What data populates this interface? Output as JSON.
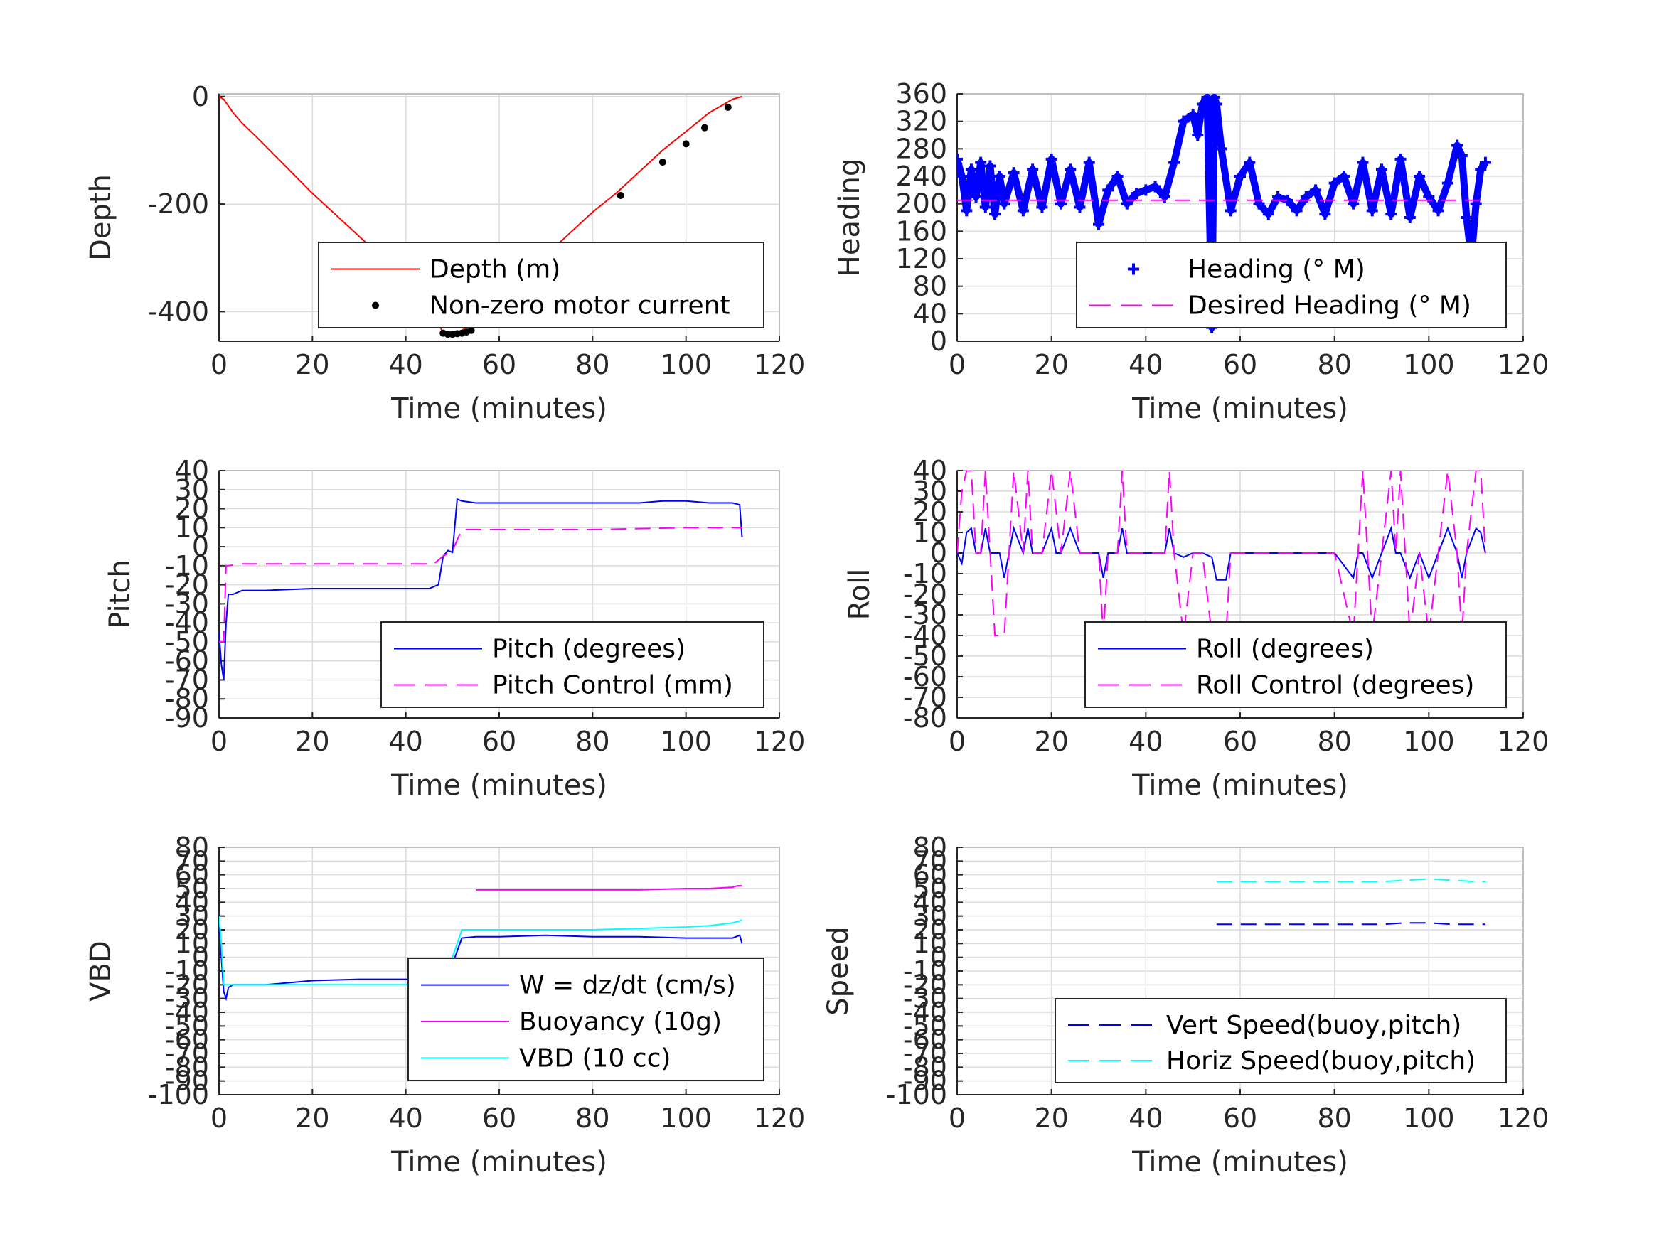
{
  "chart_data": [
    {
      "type": "line",
      "ylabel": "Depth",
      "xlabel": "Time (minutes)",
      "xlim": [
        0,
        120
      ],
      "ylim": [
        -455,
        5
      ],
      "xticks": [
        0,
        20,
        40,
        60,
        80,
        100,
        120
      ],
      "yticks": [
        -400,
        -200,
        0
      ],
      "ytick_labels": [
        "-400",
        "-200",
        "0"
      ],
      "grid": true,
      "legend_position": "bottom-right",
      "series": [
        {
          "name": "Depth (m)",
          "color": "#ff0000",
          "style": "solid",
          "x": [
            0,
            1,
            3,
            5,
            8,
            12,
            16,
            20,
            25,
            30,
            35,
            40,
            45,
            48,
            50,
            52,
            55,
            60,
            65,
            70,
            75,
            80,
            85,
            90,
            95,
            100,
            105,
            110,
            112
          ],
          "y": [
            0,
            -5,
            -30,
            -50,
            -75,
            -110,
            -145,
            -180,
            -220,
            -260,
            -300,
            -340,
            -385,
            -440,
            -440,
            -435,
            -415,
            -375,
            -335,
            -295,
            -255,
            -215,
            -180,
            -140,
            -100,
            -65,
            -30,
            -5,
            0
          ]
        },
        {
          "name": "Non-zero motor current",
          "color": "#000000",
          "style": "dots",
          "x": [
            48,
            49,
            50,
            51,
            52,
            53,
            54,
            86,
            95,
            100,
            104,
            109
          ],
          "y": [
            -440,
            -442,
            -442,
            -441,
            -440,
            -438,
            -435,
            -184,
            -122,
            -88,
            -58,
            -20
          ]
        }
      ]
    },
    {
      "type": "scatter",
      "ylabel": "Heading",
      "xlabel": "Time (minutes)",
      "xlim": [
        0,
        120
      ],
      "ylim": [
        0,
        360
      ],
      "xticks": [
        0,
        20,
        40,
        60,
        80,
        100,
        120
      ],
      "yticks": [
        0,
        40,
        80,
        120,
        160,
        200,
        240,
        280,
        320,
        360
      ],
      "ytick_labels": [
        "0",
        "40",
        "80",
        "120",
        "160",
        "200",
        "240",
        "280",
        "320",
        "360"
      ],
      "grid": true,
      "legend_position": "bottom-right",
      "series": [
        {
          "name": "Heading (° M)",
          "color": "#0000ff",
          "style": "plus",
          "x": [
            0,
            1,
            2,
            3,
            4,
            5,
            6,
            7,
            8,
            9,
            10,
            12,
            14,
            16,
            18,
            20,
            22,
            24,
            26,
            28,
            30,
            32,
            34,
            36,
            38,
            40,
            42,
            44,
            46,
            48,
            50,
            51,
            52,
            53,
            54,
            54.5,
            55,
            56,
            58,
            60,
            62,
            64,
            66,
            68,
            70,
            72,
            74,
            76,
            78,
            80,
            82,
            84,
            86,
            88,
            90,
            92,
            94,
            96,
            98,
            100,
            102,
            104,
            106,
            107,
            108,
            109,
            110,
            111,
            112
          ],
          "y": [
            265,
            240,
            190,
            250,
            210,
            260,
            195,
            255,
            185,
            240,
            200,
            245,
            190,
            250,
            195,
            265,
            200,
            250,
            195,
            260,
            170,
            220,
            240,
            200,
            215,
            220,
            225,
            210,
            260,
            320,
            330,
            300,
            345,
            355,
            20,
            355,
            345,
            280,
            190,
            240,
            260,
            200,
            185,
            210,
            205,
            190,
            210,
            220,
            185,
            230,
            240,
            200,
            260,
            190,
            250,
            185,
            265,
            180,
            240,
            210,
            190,
            230,
            285,
            270,
            180,
            120,
            200,
            250,
            260
          ]
        },
        {
          "name": "Desired Heading (° M)",
          "color": "#ff00ff",
          "style": "dashed",
          "x": [
            0,
            48,
            52,
            112
          ],
          "y": [
            205,
            205,
            205,
            205
          ]
        }
      ]
    },
    {
      "type": "line",
      "ylabel": "Pitch",
      "xlabel": "Time (minutes)",
      "xlim": [
        0,
        120
      ],
      "ylim": [
        -90,
        40
      ],
      "xticks": [
        0,
        20,
        40,
        60,
        80,
        100,
        120
      ],
      "yticks": [
        -90,
        -80,
        -70,
        -60,
        -50,
        -40,
        -30,
        -20,
        -10,
        0,
        10,
        20,
        30,
        40
      ],
      "ytick_labels": [
        "-90",
        "-80",
        "-70",
        "-60",
        "-50",
        "-40",
        "-30",
        "-20",
        "-10",
        "0",
        "10",
        "20",
        "30",
        "40"
      ],
      "grid": true,
      "legend_position": "bottom-right",
      "series": [
        {
          "name": "Pitch (degrees)",
          "color": "#0000ff",
          "style": "solid",
          "x": [
            0,
            0.5,
            1,
            1.5,
            2,
            3,
            5,
            10,
            20,
            30,
            40,
            45,
            47,
            48,
            49,
            50,
            51,
            52,
            55,
            60,
            70,
            80,
            90,
            95,
            100,
            105,
            110,
            111.5,
            112
          ],
          "y": [
            -45,
            -62,
            -70,
            -40,
            -25,
            -25,
            -23,
            -23,
            -22,
            -22,
            -22,
            -22,
            -20,
            -5,
            -2,
            -3,
            25,
            24,
            23,
            23,
            23,
            23,
            23,
            24,
            24,
            23,
            23,
            22,
            5
          ]
        },
        {
          "name": "Pitch Control (mm)",
          "color": "#ff00ff",
          "style": "dashed",
          "x": [
            0,
            1,
            1.5,
            2,
            5,
            20,
            40,
            46,
            48,
            50,
            52,
            60,
            80,
            100,
            112
          ],
          "y": [
            -50,
            -50,
            -10,
            -10,
            -9,
            -9,
            -9,
            -9,
            -5,
            -2,
            9,
            9,
            9,
            10,
            10
          ]
        }
      ]
    },
    {
      "type": "line",
      "ylabel": "Roll",
      "xlabel": "Time (minutes)",
      "xlim": [
        0,
        120
      ],
      "ylim": [
        -80,
        40
      ],
      "xticks": [
        0,
        20,
        40,
        60,
        80,
        100,
        120
      ],
      "yticks": [
        -80,
        -70,
        -60,
        -50,
        -40,
        -30,
        -20,
        -10,
        0,
        10,
        20,
        30,
        40
      ],
      "ytick_labels": [
        "-80",
        "-70",
        "-60",
        "-50",
        "-40",
        "-30",
        "-20",
        "-10",
        "0",
        "10",
        "20",
        "30",
        "40"
      ],
      "grid": true,
      "legend_position": "bottom-right",
      "series": [
        {
          "name": "Roll (degrees)",
          "color": "#0000ff",
          "style": "solid",
          "x": [
            0,
            1,
            2,
            3,
            4,
            5,
            6,
            7,
            9,
            10,
            11,
            12,
            14,
            15,
            16,
            18,
            20,
            21,
            22,
            24,
            26,
            28,
            30,
            31,
            32,
            34,
            35,
            36,
            38,
            40,
            42,
            44,
            45,
            46,
            48,
            50,
            52,
            54,
            55,
            57,
            58,
            60,
            62,
            64,
            66,
            70,
            80,
            84,
            85,
            86,
            88,
            90,
            92,
            93,
            94,
            96,
            98,
            100,
            102,
            104,
            106,
            107,
            108,
            110,
            111,
            112
          ],
          "y": [
            0,
            -5,
            10,
            12,
            0,
            0,
            12,
            0,
            0,
            -12,
            0,
            12,
            0,
            12,
            0,
            0,
            12,
            0,
            0,
            12,
            0,
            0,
            0,
            -12,
            0,
            0,
            12,
            0,
            0,
            0,
            0,
            0,
            12,
            0,
            -2,
            0,
            0,
            -2,
            -13,
            -13,
            0,
            0,
            0,
            0,
            0,
            0,
            0,
            -12,
            0,
            0,
            -12,
            0,
            12,
            0,
            0,
            -12,
            0,
            -12,
            0,
            12,
            0,
            -12,
            0,
            12,
            10,
            0
          ]
        },
        {
          "name": "Roll Control (degrees)",
          "color": "#ff00ff",
          "style": "dashed",
          "x": [
            0,
            1,
            2,
            3,
            4,
            5,
            6,
            7,
            8,
            10,
            11,
            12,
            14,
            15,
            16,
            18,
            20,
            22,
            24,
            26,
            28,
            30,
            31,
            32,
            34,
            35,
            36,
            38,
            40,
            42,
            44,
            45,
            46,
            48,
            50,
            52,
            54,
            55,
            57,
            58,
            60,
            62,
            64,
            66,
            70,
            80,
            84,
            85,
            86,
            88,
            90,
            92,
            93,
            94,
            96,
            98,
            100,
            102,
            104,
            106,
            107,
            108,
            110,
            111,
            112
          ],
          "y": [
            0,
            30,
            40,
            40,
            0,
            0,
            40,
            0,
            -40,
            -40,
            0,
            40,
            0,
            40,
            0,
            0,
            40,
            0,
            40,
            0,
            0,
            0,
            -40,
            0,
            0,
            40,
            0,
            0,
            0,
            0,
            0,
            40,
            0,
            -40,
            0,
            0,
            -40,
            -40,
            -40,
            0,
            0,
            0,
            0,
            0,
            0,
            0,
            -40,
            0,
            40,
            -40,
            0,
            40,
            0,
            40,
            -40,
            0,
            -40,
            0,
            40,
            0,
            -40,
            0,
            40,
            40,
            0
          ]
        }
      ]
    },
    {
      "type": "line",
      "ylabel": "VBD",
      "xlabel": "Time (minutes)",
      "xlim": [
        0,
        120
      ],
      "ylim": [
        -100,
        80
      ],
      "xticks": [
        0,
        20,
        40,
        60,
        80,
        100,
        120
      ],
      "yticks": [
        -100,
        -90,
        -80,
        -70,
        -60,
        -50,
        -40,
        -30,
        -20,
        -10,
        0,
        10,
        20,
        30,
        40,
        50,
        60,
        70,
        80
      ],
      "ytick_labels": [
        "-100",
        "-90",
        "-80",
        "-70",
        "-60",
        "-50",
        "-40",
        "-30",
        "-20",
        "-10",
        "0",
        "10",
        "20",
        "30",
        "40",
        "50",
        "60",
        "70",
        "80"
      ],
      "grid": true,
      "legend_position": "bottom-right",
      "series": [
        {
          "name": "W = dz/dt (cm/s)",
          "color": "#0000ff",
          "style": "solid",
          "x": [
            0,
            0.5,
            1,
            1.5,
            2,
            3,
            5,
            10,
            20,
            30,
            40,
            46,
            47,
            48,
            50,
            52,
            55,
            60,
            70,
            80,
            90,
            100,
            110,
            111.5,
            112
          ],
          "y": [
            30,
            0,
            -25,
            -30,
            -22,
            -20,
            -20,
            -20,
            -17,
            -16,
            -16,
            -16,
            -15,
            -8,
            -5,
            14,
            15,
            15,
            16,
            15,
            15,
            14,
            14,
            16,
            10
          ]
        },
        {
          "name": "Buoyancy (10g)",
          "color": "#ff00ff",
          "style": "solid",
          "x": [
            55,
            60,
            70,
            80,
            90,
            100,
            105,
            110,
            111,
            112
          ],
          "y": [
            49,
            49,
            49,
            49,
            49,
            50,
            50,
            51,
            52,
            52
          ]
        },
        {
          "name": "VBD (10 cc)",
          "color": "#00ffff",
          "style": "solid",
          "x": [
            0,
            0.5,
            1,
            1.5,
            2,
            3,
            5,
            10,
            20,
            30,
            40,
            47,
            48,
            50,
            52,
            55,
            60,
            70,
            80,
            90,
            100,
            105,
            110,
            112
          ],
          "y": [
            30,
            10,
            -20,
            -20,
            -20,
            -20,
            -20,
            -20,
            -20,
            -20,
            -20,
            -20,
            -20,
            0,
            20,
            20,
            20,
            20,
            20,
            21,
            22,
            23,
            25,
            27
          ]
        }
      ]
    },
    {
      "type": "line",
      "ylabel": "Speed",
      "xlabel": "Time (minutes)",
      "xlim": [
        0,
        120
      ],
      "ylim": [
        -100,
        80
      ],
      "xticks": [
        0,
        20,
        40,
        60,
        80,
        100,
        120
      ],
      "yticks": [
        -100,
        -90,
        -80,
        -70,
        -60,
        -50,
        -40,
        -30,
        -20,
        -10,
        0,
        10,
        20,
        30,
        40,
        50,
        60,
        70,
        80
      ],
      "ytick_labels": [
        "-100",
        "-90",
        "-80",
        "-70",
        "-60",
        "-50",
        "-40",
        "-30",
        "-20",
        "-10",
        "0",
        "10",
        "20",
        "30",
        "40",
        "50",
        "60",
        "70",
        "80"
      ],
      "grid": true,
      "legend_position": "bottom-right",
      "series": [
        {
          "name": "Vert Speed(buoy,pitch)",
          "color": "#0000ff",
          "style": "dashed",
          "x": [
            55,
            60,
            65,
            70,
            75,
            80,
            85,
            90,
            95,
            100,
            105,
            110,
            112
          ],
          "y": [
            24,
            24,
            24,
            24,
            24,
            24,
            24,
            24,
            25,
            25,
            24,
            24,
            24
          ]
        },
        {
          "name": "Horiz Speed(buoy,pitch)",
          "color": "#00ffff",
          "style": "dashed",
          "x": [
            55,
            60,
            65,
            70,
            75,
            80,
            85,
            90,
            95,
            100,
            105,
            110,
            112
          ],
          "y": [
            55,
            55,
            55,
            55,
            55,
            55,
            55,
            55,
            56,
            57,
            56,
            55,
            55
          ]
        }
      ]
    }
  ]
}
